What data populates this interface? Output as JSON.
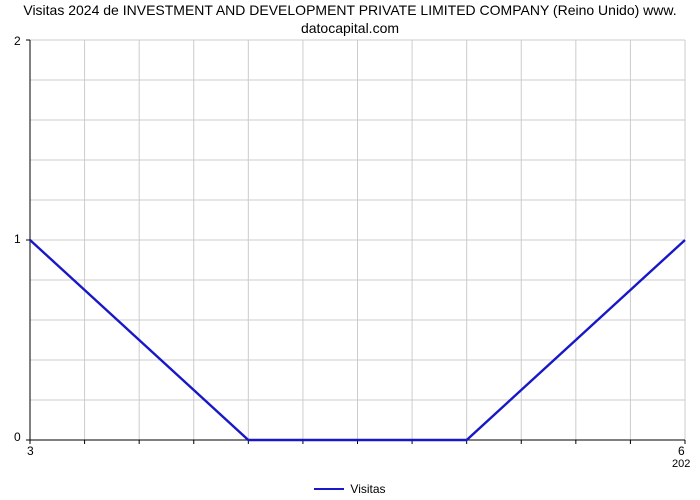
{
  "chart": {
    "type": "line",
    "title_line1": "Visitas 2024 de INVESTMENT AND DEVELOPMENT PRIVATE LIMITED COMPANY (Reino Unido) www.",
    "title_line2": "datocapital.com",
    "title_fontsize": 14,
    "title_color": "#000000",
    "background_color": "#ffffff",
    "series_name": "Visitas",
    "series_color": "#1818c8",
    "line_width": 2.4,
    "grid_color": "#cccccc",
    "grid_width": 1,
    "axis_color": "#000000",
    "xlim": [
      3,
      6
    ],
    "ylim": [
      0,
      2
    ],
    "ytick_positions": [
      0,
      1,
      2
    ],
    "ytick_labels": [
      "0",
      "1",
      "2"
    ],
    "xtick_positions": [
      3,
      6
    ],
    "xtick_labels": [
      "3",
      "6"
    ],
    "xminor_count": 12,
    "yminor_count": 10,
    "secondary_xlabel": "202",
    "data_x": [
      3,
      4,
      5,
      6
    ],
    "data_y": [
      1,
      0,
      0,
      1
    ],
    "legend_label": "Visitas",
    "tick_fontsize": 12
  }
}
